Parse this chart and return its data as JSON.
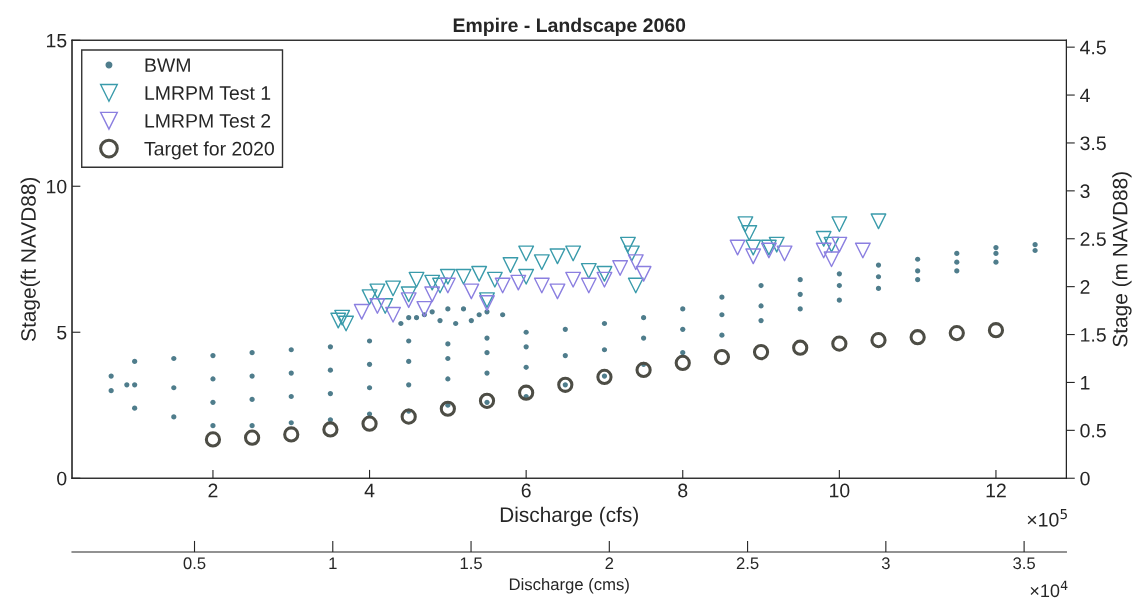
{
  "chart_data": {
    "type": "scatter",
    "title": "Empire - Landscape 2060",
    "xlabel": "Discharge (cfs)",
    "ylabel": "Stage(ft NAVD88)",
    "y2label": "Stage (m NAVD88)",
    "x2label": "Discharge (cms)",
    "xlim": [
      0.2,
      12.9
    ],
    "xticks": [
      2,
      4,
      6,
      8,
      10,
      12
    ],
    "ylim": [
      0,
      15
    ],
    "yticks": [
      0,
      5,
      10,
      15
    ],
    "y2lim": [
      0,
      4.572
    ],
    "y2ticks": [
      0,
      0.5,
      1,
      1.5,
      2,
      2.5,
      3,
      3.5,
      4,
      4.5
    ],
    "x2lim": [
      0.057,
      3.653
    ],
    "x2ticks": [
      0.5,
      1,
      1.5,
      2,
      2.5,
      3,
      3.5
    ],
    "annotations": [
      "×10$^{5}$",
      "×10$^{4}$"
    ],
    "legend": "top left",
    "grid": false,
    "series": [
      {
        "name": "BWM",
        "color": "#4f7d8c",
        "marker": "dot",
        "x": [
          0.7,
          0.7,
          0.9,
          1.0,
          1.0,
          1.0,
          1.5,
          1.5,
          1.5,
          2.0,
          2.0,
          2.0,
          2.0,
          2.5,
          2.5,
          2.5,
          2.5,
          3.0,
          3.0,
          3.0,
          3.0,
          3.5,
          3.5,
          3.5,
          3.5,
          4.0,
          4.0,
          4.0,
          4.0,
          4.5,
          4.5,
          4.5,
          4.5,
          5.0,
          5.0,
          5.0,
          5.0,
          5.5,
          5.5,
          5.5,
          5.5,
          6.0,
          6.0,
          6.0,
          6.0,
          6.5,
          6.5,
          6.5,
          7.0,
          7.0,
          7.0,
          7.5,
          7.5,
          7.5,
          8.0,
          8.0,
          8.0,
          8.5,
          8.5,
          8.5,
          9.0,
          9.0,
          9.0,
          9.5,
          9.5,
          9.5,
          10.0,
          10.0,
          10.0,
          10.5,
          10.5,
          10.5,
          11.0,
          11.0,
          11.0,
          11.5,
          11.5,
          11.5,
          12.0,
          12.0,
          12.0,
          12.5,
          12.5,
          4.4,
          4.5,
          4.7,
          4.9,
          5.1,
          5.3,
          5.4,
          5.0,
          4.8,
          4.6,
          5.2,
          5.5,
          5.7
        ],
        "values": [
          3.0,
          3.5,
          3.2,
          2.4,
          3.2,
          4.0,
          2.1,
          3.1,
          4.1,
          1.8,
          2.6,
          3.4,
          4.2,
          1.8,
          2.7,
          3.5,
          4.3,
          1.9,
          2.8,
          3.6,
          4.4,
          2.0,
          2.9,
          3.7,
          4.5,
          2.2,
          3.1,
          3.9,
          4.7,
          2.3,
          3.2,
          4.0,
          4.7,
          2.5,
          3.4,
          4.1,
          4.6,
          2.6,
          3.6,
          4.3,
          4.8,
          2.8,
          3.8,
          4.5,
          5.0,
          3.2,
          4.2,
          5.1,
          3.5,
          4.4,
          5.3,
          3.9,
          4.8,
          5.5,
          4.3,
          5.1,
          5.8,
          4.9,
          5.6,
          6.2,
          5.4,
          5.9,
          6.6,
          5.8,
          6.3,
          6.8,
          6.1,
          6.6,
          7.0,
          6.5,
          6.9,
          7.3,
          6.8,
          7.1,
          7.5,
          7.1,
          7.4,
          7.7,
          7.4,
          7.7,
          7.9,
          7.8,
          8.0,
          5.3,
          5.5,
          5.6,
          5.4,
          5.3,
          5.4,
          5.6,
          5.8,
          5.7,
          5.5,
          5.8,
          5.7,
          5.6
        ]
      },
      {
        "name": "LMRPM Test 1",
        "color": "#3a9bab",
        "marker": "triangle",
        "x": [
          3.6,
          3.65,
          3.7,
          4.0,
          4.1,
          4.2,
          4.3,
          4.5,
          4.6,
          4.8,
          4.9,
          5.0,
          5.2,
          5.4,
          5.5,
          5.6,
          5.8,
          6.0,
          6.0,
          6.2,
          6.4,
          6.6,
          6.8,
          7.0,
          7.3,
          7.35,
          7.4,
          8.8,
          8.85,
          8.9,
          9.1,
          9.2,
          9.8,
          9.9,
          10.0,
          10.5
        ],
        "values": [
          5.4,
          5.5,
          5.3,
          6.2,
          6.4,
          5.9,
          6.5,
          6.3,
          6.8,
          6.7,
          6.6,
          6.9,
          6.9,
          7.0,
          6.1,
          6.8,
          7.3,
          7.7,
          6.9,
          7.4,
          7.6,
          7.7,
          7.1,
          7.0,
          8.0,
          7.7,
          6.6,
          8.7,
          8.4,
          7.9,
          7.9,
          8.0,
          8.2,
          8.0,
          8.7,
          8.8
        ]
      },
      {
        "name": "LMRPM Test 2",
        "color": "#8b7fe0",
        "marker": "triangle",
        "x": [
          3.9,
          4.1,
          4.3,
          4.5,
          4.7,
          4.8,
          5.0,
          5.3,
          5.5,
          5.7,
          5.9,
          6.2,
          6.4,
          6.6,
          6.8,
          7.0,
          7.2,
          7.4,
          7.5,
          8.7,
          8.9,
          9.1,
          9.3,
          9.8,
          9.9,
          10.0,
          10.3
        ],
        "values": [
          5.7,
          5.9,
          5.6,
          6.1,
          5.8,
          6.3,
          6.6,
          6.4,
          6.0,
          6.6,
          6.7,
          6.6,
          6.4,
          6.8,
          6.6,
          6.8,
          7.2,
          7.4,
          7.0,
          7.9,
          7.6,
          7.8,
          7.7,
          7.8,
          7.5,
          8.0,
          7.8
        ]
      },
      {
        "name": "Target for 2020",
        "color": "#4d4d45",
        "marker": "circle",
        "x": [
          2,
          2.5,
          3,
          3.5,
          4,
          4.5,
          5,
          5.5,
          6,
          6.5,
          7,
          7.5,
          8,
          8.5,
          9,
          9.5,
          10,
          10.5,
          11,
          11.5,
          12
        ],
        "values": [
          1.33,
          1.39,
          1.5,
          1.67,
          1.87,
          2.11,
          2.38,
          2.65,
          2.93,
          3.2,
          3.47,
          3.71,
          3.95,
          4.15,
          4.32,
          4.47,
          4.61,
          4.73,
          4.83,
          4.97,
          5.07
        ]
      }
    ]
  }
}
